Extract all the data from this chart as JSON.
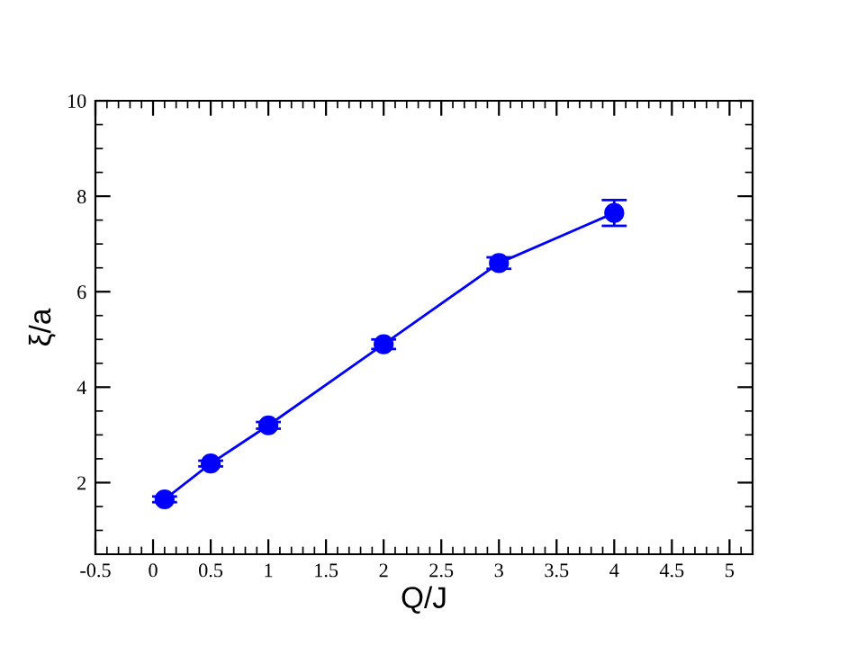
{
  "chart_data": {
    "type": "line",
    "xlabel": "Q/J",
    "ylabel": "ξ/a",
    "x": [
      0.1,
      0.5,
      1,
      2,
      3,
      4
    ],
    "series": [
      {
        "color": "#0000ff",
        "values": [
          1.65,
          2.4,
          3.2,
          4.9,
          6.6,
          7.65
        ],
        "errors": [
          0.06,
          0.06,
          0.07,
          0.1,
          0.12,
          0.27
        ]
      }
    ],
    "marker": "circle",
    "line_style": "solid",
    "grid": false,
    "legend": false,
    "xlim": [
      -0.5,
      5.2
    ],
    "xticks": [
      -0.5,
      0,
      0.5,
      1,
      1.5,
      2,
      2.5,
      3,
      3.5,
      4,
      4.5,
      5
    ],
    "ylim": [
      0.5,
      10
    ],
    "yticks": [
      2,
      4,
      6,
      8,
      10
    ]
  }
}
